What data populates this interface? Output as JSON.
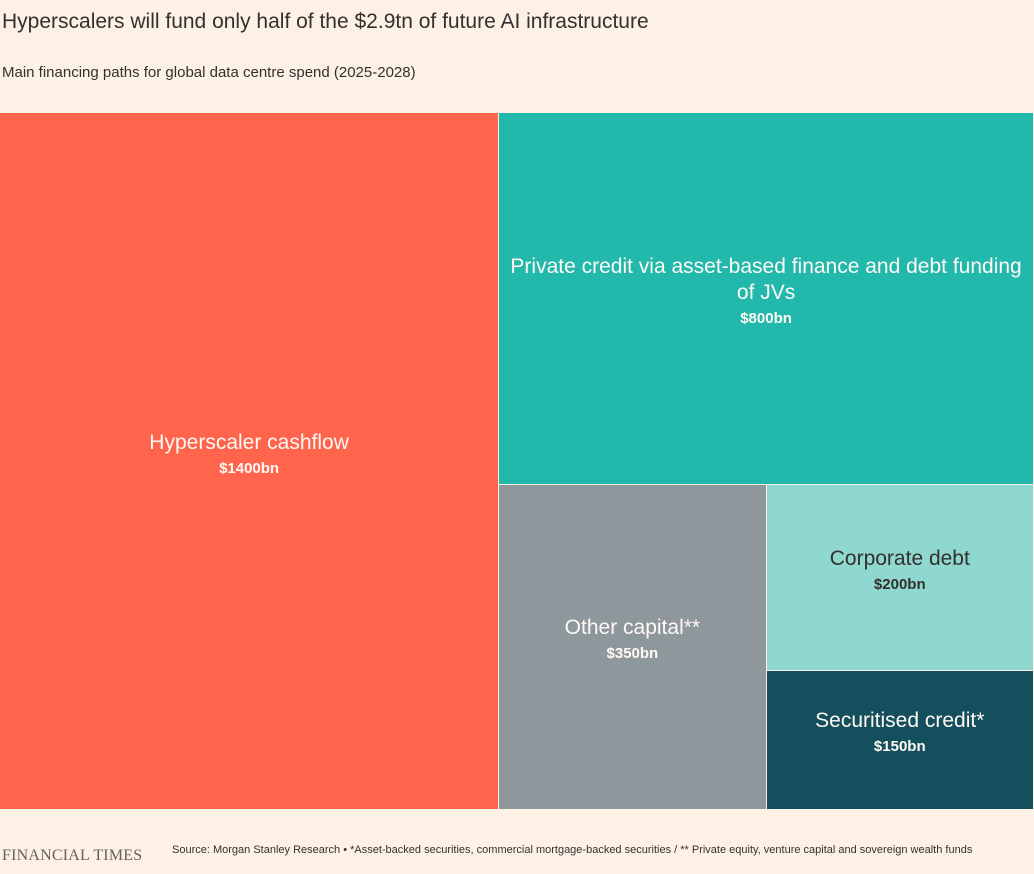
{
  "title": "Hyperscalers will fund only half of the $2.9tn of future AI infrastructure",
  "subtitle": "Main financing paths for global data centre spend (2025-2028)",
  "chart_data": {
    "type": "treemap",
    "unit": "$bn",
    "total": 2900,
    "items": [
      {
        "label": "Hyperscaler cashflow",
        "value": 1400,
        "value_label": "$1400bn",
        "color": "#ff644c",
        "text_color": "#fff9f5"
      },
      {
        "label": "Private credit via asset-based finance and debt funding of JVs",
        "value": 800,
        "value_label": "$800bn",
        "color": "#22b8ac",
        "text_color": "#fff9f5"
      },
      {
        "label": "Other capital**",
        "value": 350,
        "value_label": "$350bn",
        "color": "#8e979c",
        "text_color": "#fff9f5"
      },
      {
        "label": "Corporate debt",
        "value": 200,
        "value_label": "$200bn",
        "color": "#8fd8d0",
        "text_color": "#33302e"
      },
      {
        "label": "Securitised credit*",
        "value": 150,
        "value_label": "$150bn",
        "color": "#134f5c",
        "text_color": "#fff9f5"
      }
    ]
  },
  "footer": {
    "brand": "FINANCIAL TIMES",
    "source": "Source: Morgan Stanley Research • *Asset-backed securities, commercial mortgage-backed securities / ** Private equity, venture capital and sovereign wealth funds"
  }
}
